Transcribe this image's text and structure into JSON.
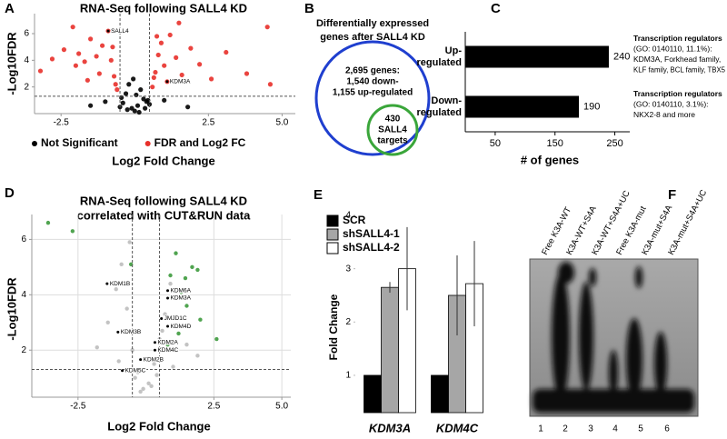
{
  "chart_data": [
    {
      "type": "scatter",
      "panel": "A",
      "title": "RNA-Seq following SALL4 KD",
      "xlabel": "Log2 Fold Change",
      "ylabel": "-Log10FDR",
      "xlim": [
        -3.4,
        5.45
      ],
      "ylim": [
        0,
        7.5
      ],
      "xticks": [
        -2.5,
        2.5,
        {
          "value": 5,
          "label": "5.0"
        }
      ],
      "yticks": [
        2,
        4,
        6
      ],
      "grid": false,
      "x_thresholds": [
        -0.5,
        0.5
      ],
      "y_threshold": 1.3,
      "series": [
        {
          "name": "Not Significant",
          "color": "#000000",
          "x": [
            -0.4,
            -0.3,
            -0.2,
            -0.1,
            0,
            0.1,
            0.2,
            0.3,
            0.4,
            -0.5,
            0.5,
            -0.25,
            0.15,
            -0.05,
            0.35,
            -0.45,
            0.45,
            0.05,
            -1.5,
            -1,
            1,
            1.8
          ],
          "y": [
            0.8,
            1.5,
            2.2,
            0.4,
            0.2,
            0.6,
            1.8,
            1.1,
            0.9,
            0.5,
            0.7,
            0.3,
            0.1,
            2.6,
            0.4,
            1.2,
            1.0,
            1.4,
            0.6,
            0.9,
            1.0,
            0.5
          ]
        },
        {
          "name": "FDR and Log2 FC",
          "color": "#e8302a",
          "x": [
            -3.2,
            -2.8,
            -2.4,
            -2.1,
            -1.9,
            -1.7,
            -1.5,
            -1.3,
            -1.1,
            -0.9,
            -0.8,
            -0.7,
            -0.6,
            -1.2,
            -1.6,
            -2.0,
            -0.75,
            -0.65,
            0.6,
            0.7,
            0.8,
            0.9,
            1.0,
            1.2,
            1.4,
            1.6,
            1.9,
            2.2,
            2.6,
            3.1,
            3.8,
            4.5,
            1.1,
            0.75,
            0.65,
            1.5,
            4.6
          ],
          "y": [
            3.2,
            4.1,
            4.8,
            6.5,
            4.5,
            3.9,
            5.6,
            4.3,
            5.1,
            6.2,
            4.0,
            2.8,
            1.8,
            3.0,
            2.5,
            3.6,
            5.0,
            2.2,
            2.0,
            3.1,
            4.4,
            5.3,
            3.6,
            5.9,
            4.2,
            2.9,
            4.9,
            3.7,
            2.6,
            4.6,
            3.0,
            6.5,
            2.4,
            5.8,
            2.7,
            6.8,
            2.2
          ]
        }
      ],
      "labeled_points": {
        "labels": [
          "SALL4",
          "KDM3A"
        ],
        "x": [
          -0.9,
          1.1
        ],
        "y": [
          6.2,
          2.4
        ]
      }
    },
    {
      "type": "bar",
      "orientation": "horizontal",
      "panel": "C",
      "xlabel": "# of genes",
      "categories": [
        "Up-regulated",
        "Down-regulated"
      ],
      "values": [
        240,
        190
      ],
      "color": "#000000",
      "xlim": [
        0,
        275
      ],
      "xticks": [
        50,
        150,
        250
      ],
      "annotations": [
        [
          "Transcription regulators",
          "(GO: 0140110, 11.1%):",
          "KDM3A, Forkhead family,",
          "KLF family, BCL family, TBX5"
        ],
        [
          "Transcription regulators",
          "(GO: 0140110, 3.1%):",
          "NKX2-8 and more"
        ]
      ]
    },
    {
      "type": "scatter",
      "panel": "D",
      "title": [
        "RNA-Seq following SALL4 KD",
        "correlated with CUT&RUN data"
      ],
      "xlabel": "Log2 Fold Change",
      "ylabel": "-Log10FDR",
      "xlim": [
        -4.2,
        5.33
      ],
      "ylim": [
        0.3,
        6.9
      ],
      "xticks": [
        -2.5,
        2.5,
        {
          "value": 5,
          "label": "5.0"
        }
      ],
      "yticks": [
        2,
        4,
        6
      ],
      "grid": true,
      "x_thresholds": [
        -0.5,
        0.5
      ],
      "y_threshold": 1.3,
      "series": [
        {
          "color": "#bdbdbd",
          "x": [
            -1.8,
            -1.4,
            -1.1,
            -0.9,
            -0.7,
            -0.5,
            -0.3,
            -0.1,
            0.1,
            0.3,
            0.5,
            0.7,
            0.9,
            1.2,
            1.5,
            1.9,
            -0.6,
            -0.4,
            0.4,
            0.6,
            -0.2,
            0.2,
            -1.0,
            1.0
          ],
          "y": [
            2.1,
            3.0,
            4.2,
            5.1,
            3.5,
            2.0,
            1.2,
            0.6,
            0.8,
            1.5,
            2.4,
            3.3,
            4.4,
            2.9,
            2.2,
            1.8,
            5.9,
            1.0,
            1.1,
            2.7,
            0.5,
            0.7,
            1.6,
            1.4
          ]
        },
        {
          "color": "#3d9a3d",
          "x": [
            -3.6,
            -2.7,
            -0.55,
            0.9,
            1.1,
            1.3,
            1.5,
            1.7,
            2.0,
            1.2,
            0.95,
            1.45,
            2.6,
            0.8,
            1.9
          ],
          "y": [
            6.6,
            6.3,
            5.1,
            4.7,
            5.5,
            4.1,
            3.6,
            5.0,
            3.1,
            2.6,
            3.9,
            4.6,
            2.4,
            2.2,
            4.9
          ]
        }
      ],
      "labeled_points": {
        "labels": [
          "KDM1B",
          "KDM6A",
          "KDM3A",
          "JMJD1C",
          "KDM4D",
          "KDM3B",
          "KDM2A",
          "KDM4C",
          "KDM2B",
          "KDM5C"
        ],
        "x": [
          -1.43,
          0.8,
          0.8,
          0.57,
          0.8,
          -1.03,
          0.33,
          0.33,
          -0.2,
          -0.87
        ],
        "y": [
          4.4,
          4.15,
          3.88,
          3.14,
          2.86,
          2.65,
          2.28,
          2.0,
          1.66,
          1.26
        ]
      }
    },
    {
      "type": "bar",
      "orientation": "vertical",
      "panel": "E",
      "ylabel": "Fold Change",
      "categories": [
        "KDM3A",
        "KDM4C"
      ],
      "ylim": [
        0.3,
        4
      ],
      "yticks": [
        1,
        2,
        3,
        4
      ],
      "series": [
        {
          "name": "SCR",
          "color": "#000000",
          "values": [
            1,
            1
          ],
          "errors": [
            0,
            0
          ]
        },
        {
          "name": "shSALL4-1",
          "color": "#a6a6a6",
          "values": [
            2.65,
            2.5
          ],
          "errors": [
            0.1,
            0.75
          ]
        },
        {
          "name": "shSALL4-2",
          "color": "#ffffff",
          "values": [
            3.0,
            2.72
          ],
          "errors": [
            0.78,
            0.8
          ]
        }
      ]
    }
  ],
  "venn": {
    "panel": "B",
    "title": [
      "Differentially expressed",
      "genes after SALL4 KD"
    ],
    "outer": [
      "2,695 genes:",
      "1,540 down-",
      "1,155 up-regulated"
    ],
    "inner": [
      "430",
      "SALL4",
      "targets"
    ]
  },
  "gel": {
    "panel": "F",
    "lane_labels": [
      "Free K3A-WT",
      "K3A-WT+S4A",
      "K3A-WT+S4A+UC",
      "Free K3A-mut",
      "K3A-mut+S4A",
      "K3A-mut+S4A+UC"
    ],
    "lane_numbers": [
      1,
      2,
      3,
      4,
      5,
      6
    ]
  }
}
